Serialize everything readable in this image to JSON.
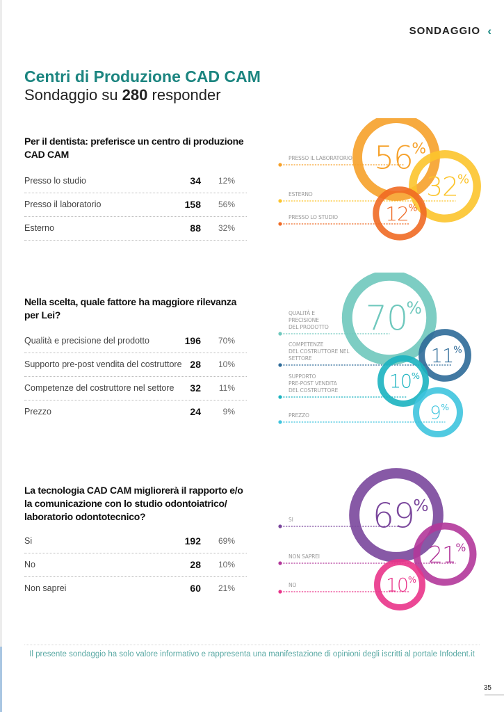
{
  "header": {
    "section": "SONDAGGIO",
    "chevron_icon": "‹",
    "title": "Centri di Produzione CAD CAM",
    "subtitle_prefix": "Sondaggio su ",
    "subtitle_number": "280",
    "subtitle_suffix": " responder"
  },
  "footer": {
    "note": "Il presente sondaggio ha solo valore informativo e rappresenta una manifestazione di opinioni degli iscritti al portale Infodent.it",
    "page_number": "35"
  },
  "questions": [
    {
      "title": "Per il dentista: preferisce un centro di produzione CAD CAM",
      "rows": [
        {
          "label": "Presso lo studio",
          "count": "34",
          "percent": "12%"
        },
        {
          "label": "Presso il laboratorio",
          "count": "158",
          "percent": "56%"
        },
        {
          "label": "Esterno",
          "count": "88",
          "percent": "32%"
        }
      ]
    },
    {
      "title": "Nella scelta, quale fattore ha maggiore rilevanza per Lei?",
      "rows": [
        {
          "label": "Qualità e precisione del prodotto",
          "count": "196",
          "percent": "70%"
        },
        {
          "label": "Supporto pre-post vendita del costruttore",
          "count": "28",
          "percent": "10%"
        },
        {
          "label": "Competenze del costruttore nel settore",
          "count": "32",
          "percent": "11%"
        },
        {
          "label": "Prezzo",
          "count": "24",
          "percent": "9%"
        }
      ]
    },
    {
      "title": "La tecnologia CAD CAM migliorerà il rapporto e/o la comunicazione con lo studio odontoiatrico/ laboratorio odontotecnico?",
      "rows": [
        {
          "label": "Si",
          "count": "192",
          "percent": "69%"
        },
        {
          "label": "No",
          "count": "28",
          "percent": "10%"
        },
        {
          "label": "Non saprei",
          "count": "60",
          "percent": "21%"
        }
      ]
    }
  ],
  "chart_data": [
    {
      "type": "bubble-ring",
      "title": "Per il dentista: preferisce un centro di produzione CAD CAM",
      "categories": [
        "PRESSO IL LABORATORIO",
        "ESTERNO",
        "PRESSO LO STUDIO"
      ],
      "values": [
        56,
        32,
        12
      ],
      "counts": [
        158,
        88,
        34
      ],
      "value_labels": [
        "56",
        "32",
        "12"
      ],
      "colors": [
        "#f6a12a",
        "#fcc42c",
        "#ef6a24"
      ]
    },
    {
      "type": "bubble-ring",
      "title": "Nella scelta, quale fattore ha maggiore rilevanza per Lei?",
      "categories": [
        "QUALITÀ E PRECISIONE DEL PRODOTTO",
        "COMPETENZE DEL COSTRUTTORE NEL SETTORE",
        "SUPPORTO PRE-POST VENDITA DEL COSTRUTTORE",
        "PREZZO"
      ],
      "values": [
        70,
        11,
        10,
        9
      ],
      "counts": [
        196,
        32,
        28,
        24
      ],
      "value_labels": [
        "70",
        "11",
        "10",
        "9"
      ],
      "colors": [
        "#6fc8bd",
        "#2d6a98",
        "#1bb3c0",
        "#3ec4de"
      ]
    },
    {
      "type": "bubble-ring",
      "title": "La tecnologia CAD CAM migliorerà il rapporto e/o la comunicazione con lo studio odontoiatrico/laboratorio odontotecnico?",
      "categories": [
        "SI",
        "NON SAPREI",
        "NO"
      ],
      "values": [
        69,
        21,
        10
      ],
      "counts": [
        192,
        60,
        28
      ],
      "value_labels": [
        "69",
        "21",
        "10"
      ],
      "colors": [
        "#7a479c",
        "#b2379a",
        "#e9348a"
      ]
    }
  ],
  "percent_sign": "%"
}
